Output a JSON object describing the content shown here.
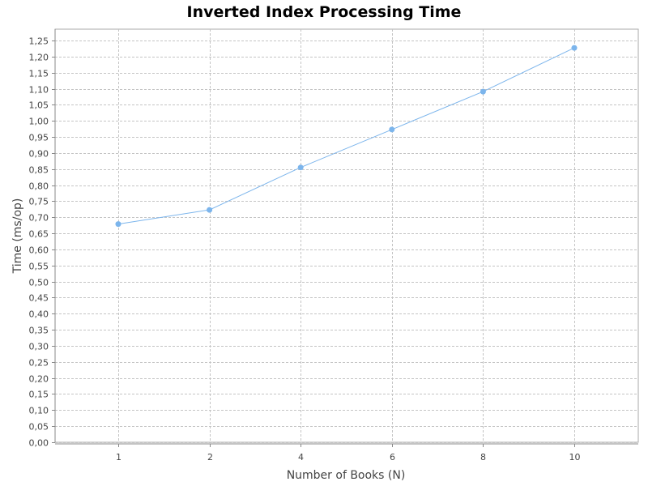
{
  "chart_data": {
    "type": "line",
    "title": "Inverted Index Processing Time",
    "xlabel": "Number of Books (N)",
    "ylabel": "Time (ms/op)",
    "categories": [
      "1",
      "2",
      "4",
      "6",
      "8",
      "10"
    ],
    "series": [
      {
        "values": [
          0.679,
          0.723,
          0.855,
          0.973,
          1.091,
          1.227
        ],
        "color": "#7cb5ec"
      }
    ],
    "ylim": [
      0,
      1.25
    ],
    "ytick_step": 0.05,
    "decimal_separator": ",",
    "grid": true,
    "legend": "none",
    "colors": {
      "plot_background": "#ffffff",
      "grid": "#c4c4c4",
      "axis": "#888888",
      "series": "#7cb5ec"
    }
  }
}
